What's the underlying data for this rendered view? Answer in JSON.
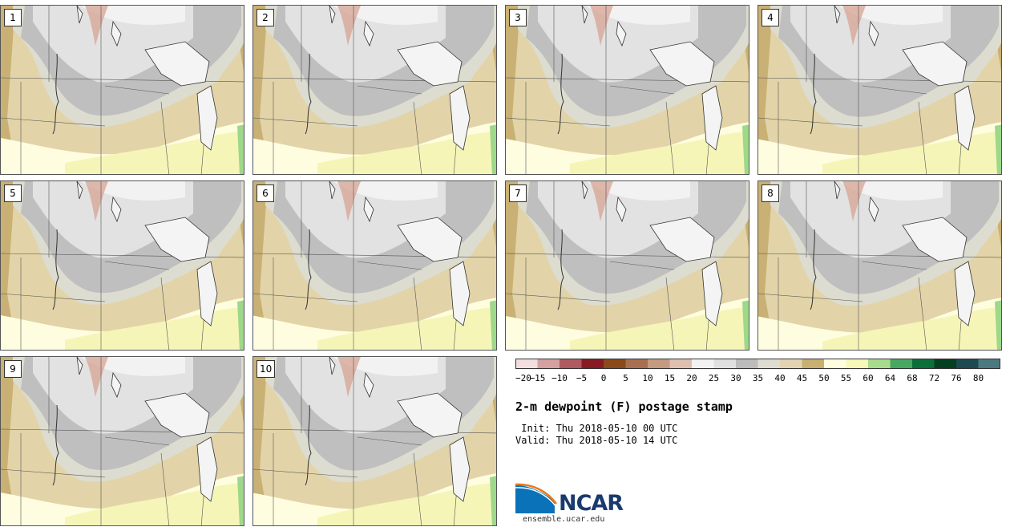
{
  "title": "2-m dewpoint (F) postage stamp",
  "init": " Init: Thu 2018-05-10 00 UTC",
  "valid": "Valid: Thu 2018-05-10 14 UTC",
  "members": [
    "1",
    "2",
    "3",
    "4",
    "5",
    "6",
    "7",
    "8",
    "9",
    "10"
  ],
  "colorbar": {
    "ticks": [
      "−20",
      "−15",
      "−10",
      "−5",
      "0",
      "5",
      "10",
      "15",
      "20",
      "25",
      "30",
      "35",
      "40",
      "45",
      "50",
      "55",
      "60",
      "64",
      "68",
      "72",
      "76",
      "80"
    ],
    "colors": [
      "#f2dede",
      "#d4a0a0",
      "#b05a60",
      "#8a1a22",
      "#8b4a1a",
      "#a87050",
      "#c49a80",
      "#dfc0b0",
      "#f3f3f3",
      "#e0e0e0",
      "#bcbcbc",
      "#dedcd0",
      "#e2d4b0",
      "#c8b070",
      "#fffde0",
      "#f8f8b8",
      "#a8dc8c",
      "#48a860",
      "#087038",
      "#044020",
      "#1c4a50",
      "#4a7a80"
    ]
  },
  "logo": {
    "text": "NCAR",
    "url": "ensemble.ucar.edu"
  }
}
